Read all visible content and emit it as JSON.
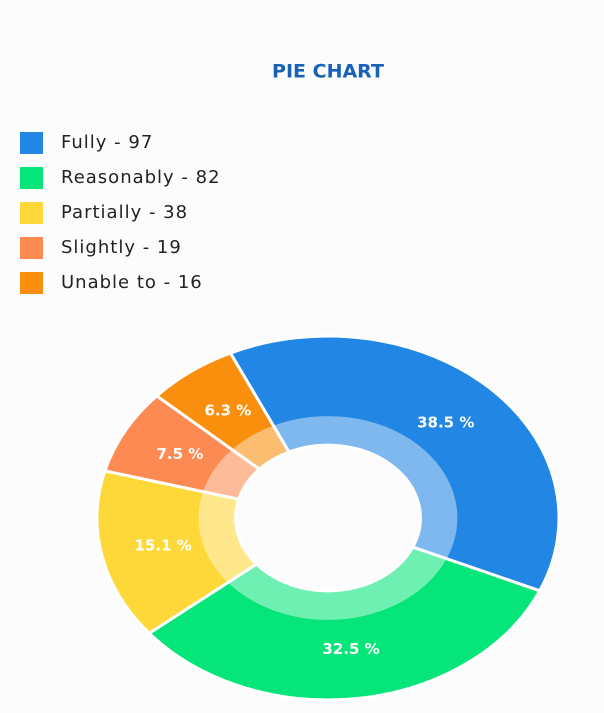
{
  "chart_data": {
    "type": "pie",
    "title": "PIE CHART",
    "legend_labels": [
      "Fully - 97",
      "Reasonably - 82",
      "Partially - 38",
      "Slightly - 19",
      "Unable to - 16"
    ],
    "values": [
      97,
      82,
      38,
      19,
      16
    ],
    "value_labels": [
      "38.5 %",
      "32.5 %",
      "15.1 %",
      "7.5 %",
      "6.3 %"
    ],
    "colors": [
      "#2186e4",
      "#06e57a",
      "#fdd838",
      "#fd8a52",
      "#f98f0c"
    ]
  }
}
